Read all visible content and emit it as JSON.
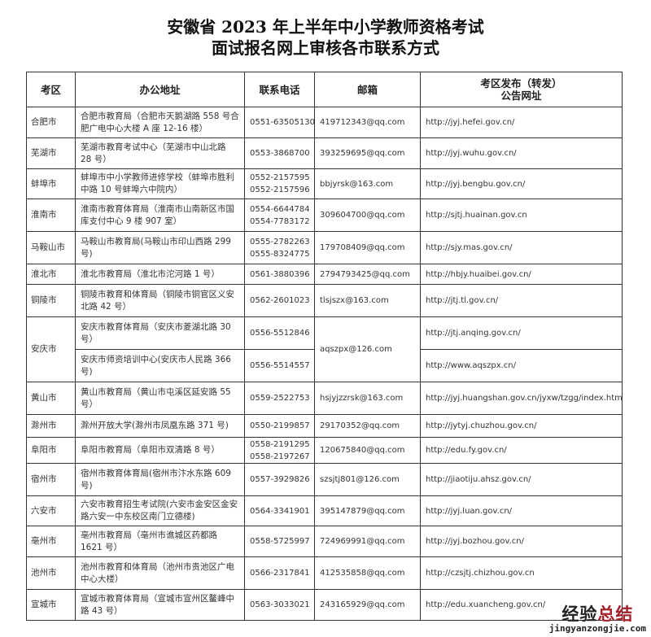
{
  "title": {
    "line1": "安徽省 2023 年上半年中小学教师资格考试",
    "line2": "面试报名网上审核各市联系方式"
  },
  "headers": {
    "district": "考区",
    "address": "办公地址",
    "phone": "联系电话",
    "email": "邮箱",
    "site_line1": "考区发布（转发）",
    "site_line2": "公告网址"
  },
  "rows": [
    {
      "city": "合肥市",
      "address": "合肥市教育局（合肥市天鹅湖路 558 号合肥广电中心大楼 A 座 12-16 楼）",
      "phones": [
        "0551-63505130"
      ],
      "email": "419712343@qq.com",
      "url": "http://jyj.hefei.gov.cn/"
    },
    {
      "city": "芜湖市",
      "address": "芜湖市教育考试中心（芜湖市中山北路 28 号）",
      "phones": [
        "0553-3868700"
      ],
      "email": "393259695@qq.com",
      "url": "http://jyj.wuhu.gov.cn/"
    },
    {
      "city": "蚌埠市",
      "address": "蚌埠市中小学教师进修学校（蚌埠市胜利中路 10 号蚌埠六中院内）",
      "phones": [
        "0552-2157595",
        "0552-2157596"
      ],
      "email": "bbjyrsk@163.com",
      "url": "http://jyj.bengbu.gov.cn/"
    },
    {
      "city": "淮南市",
      "address": "淮南市教育体育局（淮南市山南新区市国库支付中心 9 楼 907 室）",
      "phones": [
        "0554-6644784",
        "0554-7783172"
      ],
      "email": "309604700@qq.com",
      "url": "http://sjtj.huainan.gov.cn"
    },
    {
      "city": "马鞍山市",
      "address": "马鞍山市教育局(马鞍山市印山西路 299 号)",
      "phones": [
        "0555-2782263",
        "0555-8324775"
      ],
      "email": "179708409@qq.com",
      "url": "http://sjy.mas.gov.cn/"
    },
    {
      "city": "淮北市",
      "address": "淮北市教育局（淮北市沱河路 1 号）",
      "phones": [
        "0561-3880396"
      ],
      "email": "2794793425@qq.com",
      "url": "http://hbjy.huaibei.gov.cn/"
    },
    {
      "city": "铜陵市",
      "address": "铜陵市教育和体育局（铜陵市铜官区义安北路 42 号）",
      "phones": [
        "0562-2601023"
      ],
      "email": "tlsjszx@163.com",
      "url": "http://jtj.tl.gov.cn/"
    },
    {
      "city": "安庆市",
      "address": "安庆市教育体育局（安庆市菱湖北路 30 号）",
      "phones": [
        "0556-5512846"
      ],
      "email": "aqszpx@126.com",
      "url": "http://jtj.anqing.gov.cn/",
      "sub": {
        "address": "安庆市师资培训中心(安庆市人民路 366 号)",
        "phones": [
          "0556-5514557"
        ],
        "url": "http://www.aqszpx.cn/"
      }
    },
    {
      "city": "黄山市",
      "address": "黄山市教育局（黄山市屯溪区延安路 55 号）",
      "phones": [
        "0559-2522753"
      ],
      "email": "hsjyjzzrsk@163.com",
      "url": "http://jyj.huangshan.gov.cn/jyxw/tzgg/index.html"
    },
    {
      "city": "滁州市",
      "address": "滁州开放大学(滁州市凤凰东路 371 号)",
      "phones": [
        "0550-2199857"
      ],
      "email": "29170352@qq.com",
      "url": "http://jytyj.chuzhou.gov.cn/"
    },
    {
      "city": "阜阳市",
      "address": "阜阳市教育局（阜阳市双清路 8 号）",
      "phones": [
        "0558-2191295",
        "0558-2197267"
      ],
      "email": "120675840@qq.com",
      "url": "http://edu.fy.gov.cn/"
    },
    {
      "city": "宿州市",
      "address": "宿州市教育体育局(宿州市汴水东路 609 号)",
      "phones": [
        "0557-3929826"
      ],
      "email": "szsjtj801@126.com",
      "url": "http://jiaotiju.ahsz.gov.cn/"
    },
    {
      "city": "六安市",
      "address": "六安市教育招生考试院(六安市金安区金安路六安一中东校区南门立德楼)",
      "phones": [
        "0564-3341901"
      ],
      "email": "395147879@qq.com",
      "url": "http://jyj.luan.gov.cn/"
    },
    {
      "city": "亳州市",
      "address": "亳州市教育局（亳州市谯城区药都路 1621 号）",
      "phones": [
        "0558-5725997"
      ],
      "email": "724969991@qq.com",
      "url": "http://jyj.bozhou.gov.cn/"
    },
    {
      "city": "池州市",
      "address": "池州市教育和体育局（池州市贵池区广电中心大楼）",
      "phones": [
        "0566-2317841"
      ],
      "email": "412535858@qq.com",
      "url": "http://czsjtj.chizhou.gov.cn"
    },
    {
      "city": "宣城市",
      "address": "宣城市教育体育局（宣城市宣州区鳌峰中路 43 号）",
      "phones": [
        "0563-3033021"
      ],
      "email": "243165929@qq.com",
      "url": "http://edu.xuancheng.gov.cn/"
    }
  ],
  "watermark": {
    "line1_black": "经验",
    "line1_red": "总结",
    "line2": "jingyanzongjie.com"
  }
}
